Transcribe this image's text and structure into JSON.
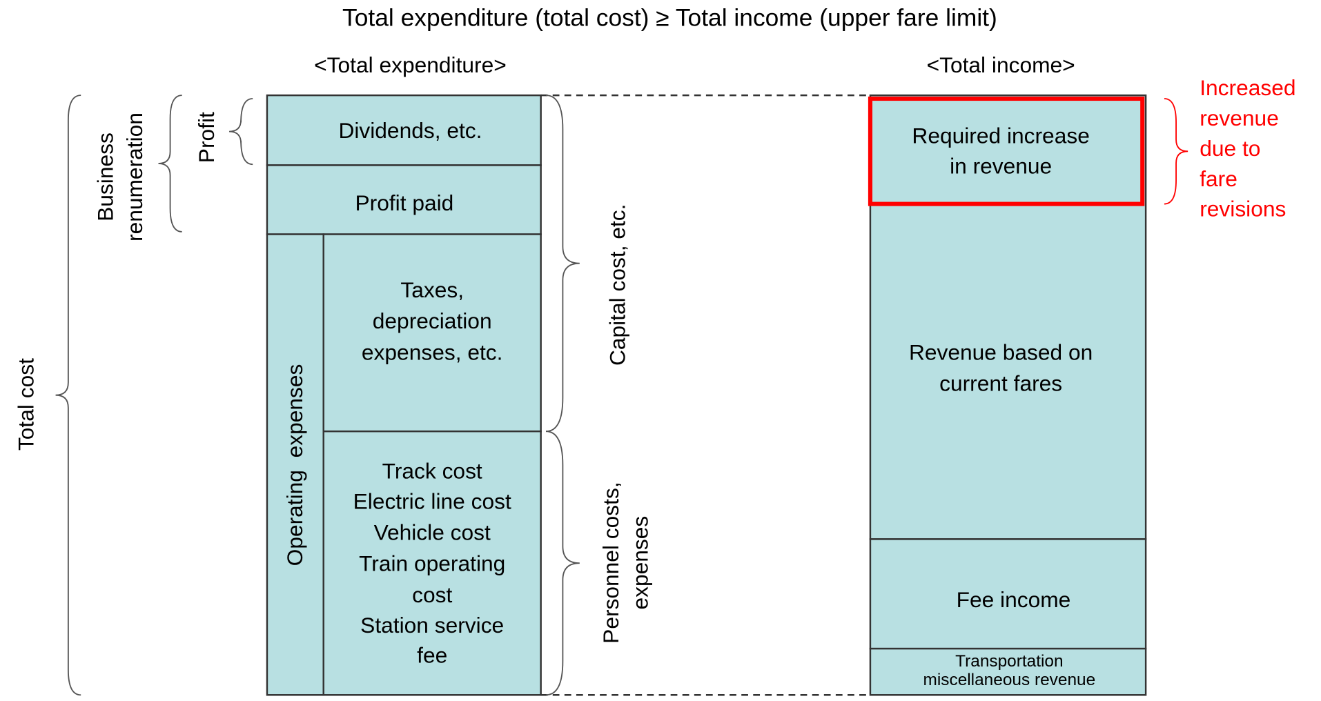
{
  "title": "Total expenditure (total cost) ≥ Total income (upper fare limit)",
  "headers": {
    "expenditure": "<Total expenditure>",
    "income": "<Total income>"
  },
  "expenditure": {
    "blocks": [
      {
        "lines": [
          "Dividends, etc."
        ]
      },
      {
        "lines": [
          "Profit paid"
        ]
      },
      {
        "lines": [
          "Taxes,",
          "depreciation",
          "expenses, etc."
        ]
      },
      {
        "lines": [
          "Track cost",
          "Electric line cost",
          "Vehicle cost",
          "Train operating",
          "cost",
          "Station service",
          "fee"
        ]
      }
    ],
    "operating": "Operating  expenses"
  },
  "income": {
    "blocks": [
      {
        "lines": [
          "Required increase",
          "in revenue"
        ]
      },
      {
        "lines": [
          "Revenue based on",
          "current fares"
        ]
      },
      {
        "lines": [
          "Fee income"
        ]
      },
      {
        "lines": [
          "Transportation",
          "miscellaneous revenue"
        ]
      }
    ]
  },
  "brackets": {
    "total_cost": "Total cost",
    "business": [
      "Business",
      "renumeration"
    ],
    "profit": "Profit",
    "capital": "Capital cost, etc.",
    "personnel": [
      "Personnel costs,",
      "expenses"
    ]
  },
  "annotation": {
    "lines": [
      "Increased",
      "revenue",
      "due to",
      "fare",
      "revisions"
    ]
  }
}
